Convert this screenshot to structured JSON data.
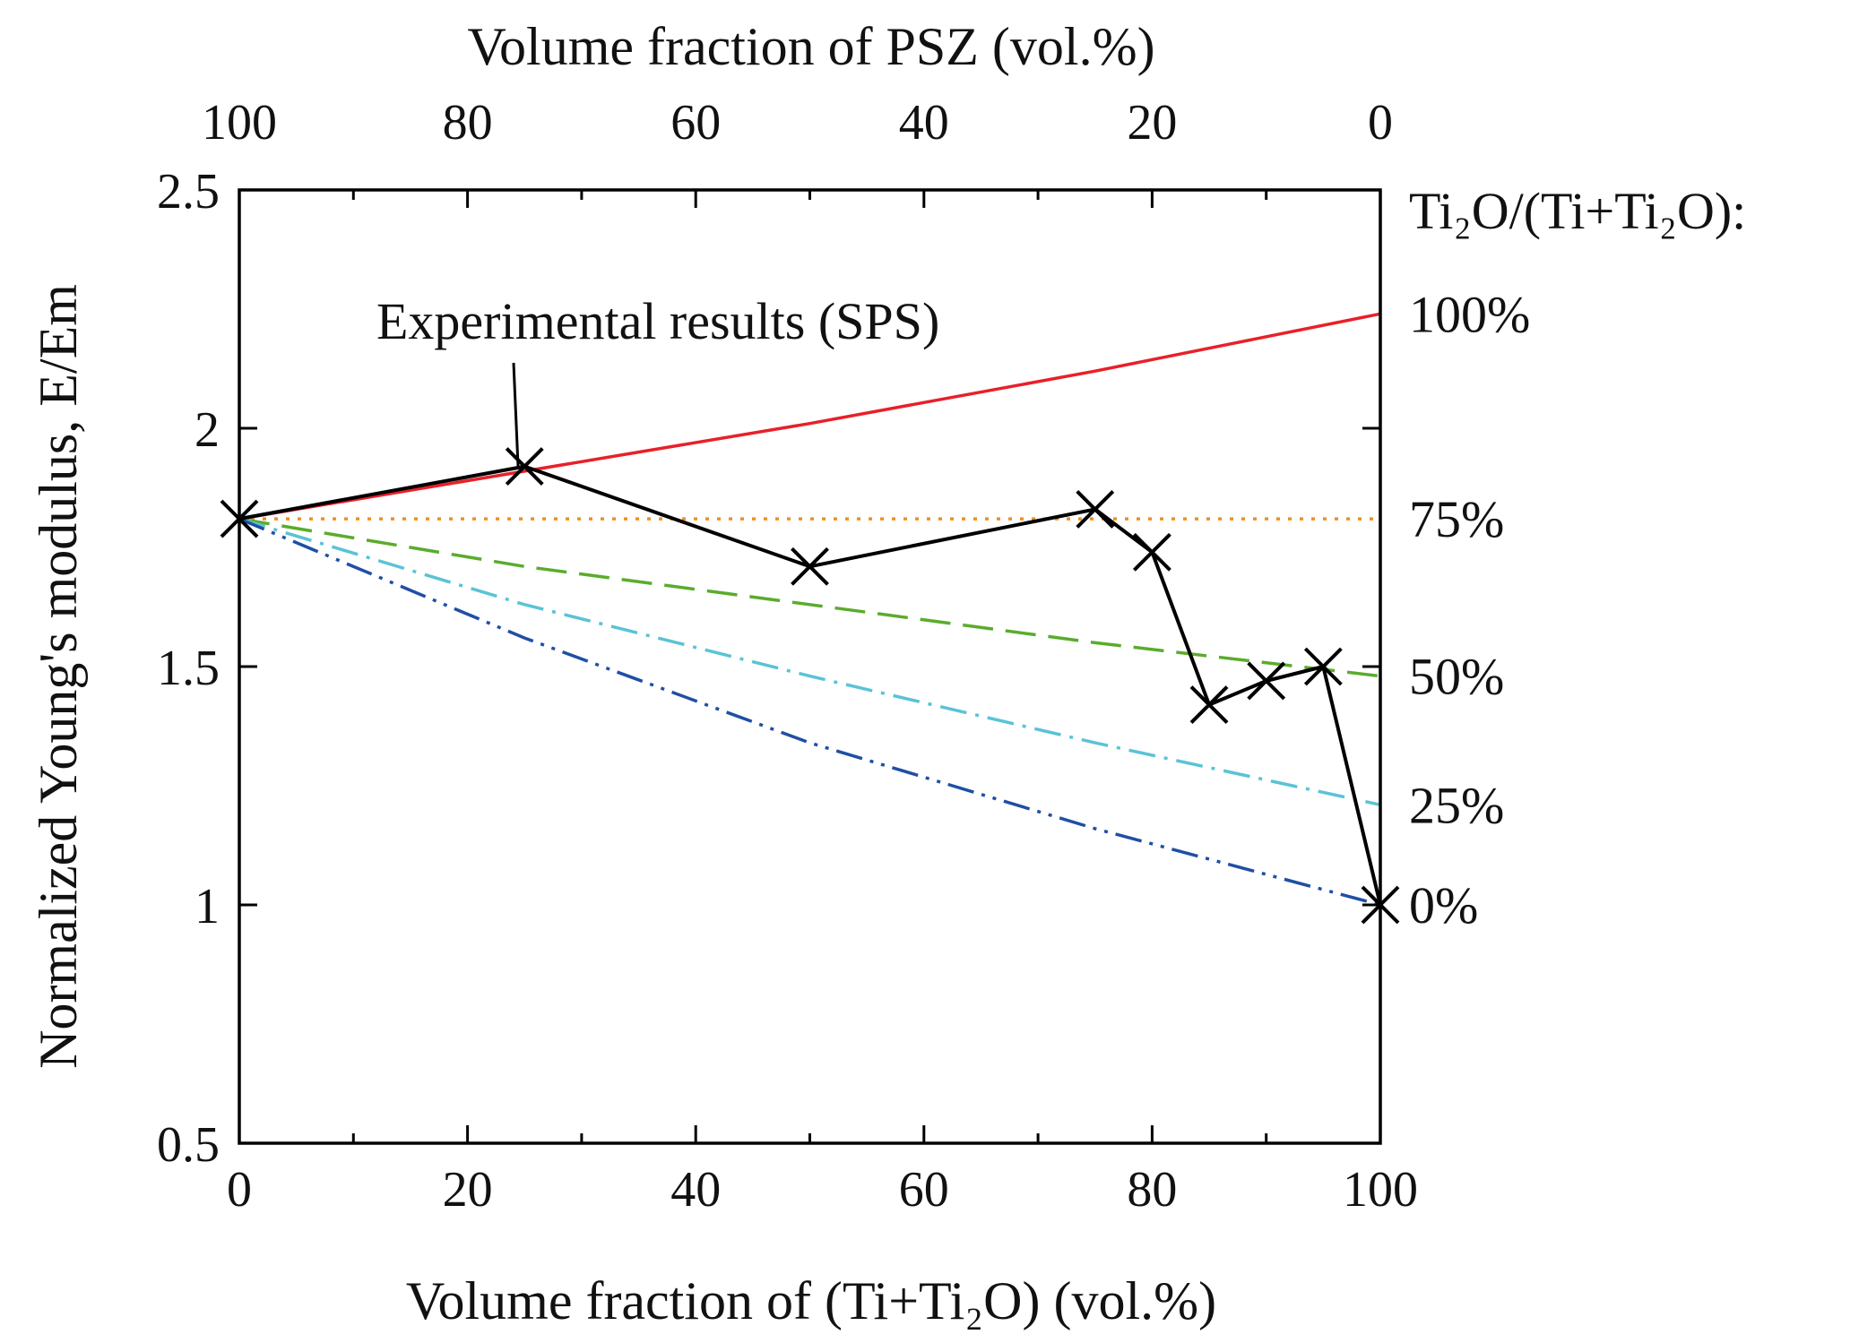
{
  "chart_data": {
    "type": "line",
    "title": "",
    "xlabel": "Volume fraction of (Ti+Ti₂O) (vol.%)",
    "x2label": "Volume fraction of PSZ (vol.%)",
    "ylabel": "Normalized Young's modulus, E/Em",
    "xlim": [
      0,
      100
    ],
    "ylim": [
      0.5,
      2.5
    ],
    "x_ticks": [
      0,
      20,
      40,
      60,
      80,
      100
    ],
    "x2_ticks": [
      100,
      80,
      60,
      40,
      20,
      0
    ],
    "y_ticks": [
      "0.5",
      "1",
      "1.5",
      "2",
      "2.5"
    ],
    "grid": false,
    "legend_title": "Ti₂O/(Ti+Ti₂O):",
    "annotation": "Experimental results (SPS)",
    "series": [
      {
        "name": "100%",
        "color": "#e8202a",
        "dash": "solid",
        "x": [
          0,
          25,
          50,
          75,
          100
        ],
        "y": [
          1.81,
          1.91,
          2.01,
          2.12,
          2.24
        ]
      },
      {
        "name": "75%",
        "color": "#f0901f",
        "dash": "dot",
        "x": [
          0,
          25,
          50,
          75,
          100
        ],
        "y": [
          1.81,
          1.81,
          1.81,
          1.81,
          1.81
        ]
      },
      {
        "name": "50%",
        "color": "#5aac2c",
        "dash": "dash",
        "x": [
          0,
          25,
          50,
          75,
          100
        ],
        "y": [
          1.81,
          1.71,
          1.63,
          1.55,
          1.48
        ]
      },
      {
        "name": "25%",
        "color": "#5ac3d6",
        "dash": "dashdot",
        "x": [
          0,
          25,
          50,
          75,
          100
        ],
        "y": [
          1.81,
          1.63,
          1.48,
          1.34,
          1.21
        ]
      },
      {
        "name": "0%",
        "color": "#1f4fa5",
        "dash": "dashdotdot",
        "x": [
          0,
          25,
          50,
          75,
          100
        ],
        "y": [
          1.81,
          1.56,
          1.34,
          1.16,
          1.0
        ]
      },
      {
        "name": "Experimental results (SPS)",
        "color": "#000000",
        "dash": "solid",
        "marker": "x",
        "x": [
          0,
          25,
          50,
          75,
          80,
          85,
          90,
          95,
          100
        ],
        "y": [
          1.81,
          1.92,
          1.71,
          1.83,
          1.74,
          1.42,
          1.47,
          1.5,
          1.0
        ]
      }
    ]
  }
}
